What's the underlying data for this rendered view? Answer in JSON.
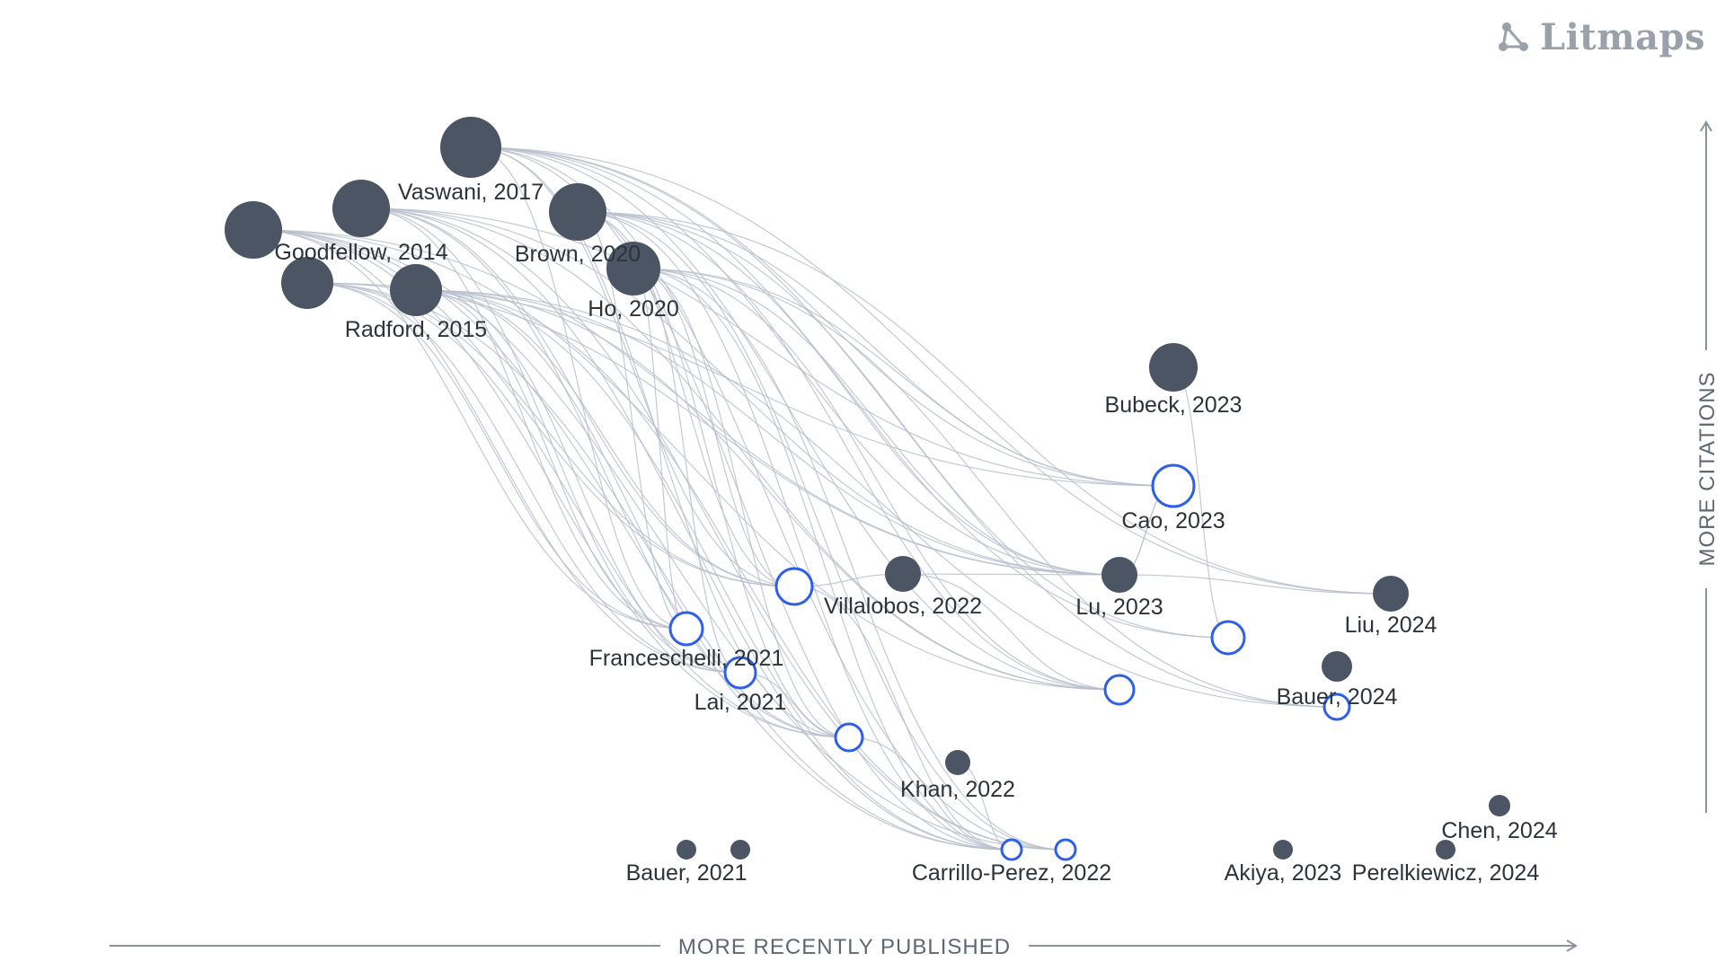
{
  "brand": {
    "name": "Litmaps",
    "icon": "litmaps-logo-icon"
  },
  "axes": {
    "x_label": "MORE RECENTLY PUBLISHED",
    "y_label": "MORE CITATIONS"
  },
  "colors": {
    "node_fill": "#4b5563",
    "seed_stroke": "#2f5fe8",
    "edge": "#b8c0cc",
    "axis": "#8a929e"
  },
  "papers": [
    {
      "id": "vaswani",
      "label": "Vaswani, 2017",
      "kind": "cited"
    },
    {
      "id": "goodfellow",
      "label": "Goodfellow, 2014",
      "kind": "cited"
    },
    {
      "id": "brown",
      "label": "Brown, 2020",
      "kind": "cited"
    },
    {
      "id": "ho",
      "label": "Ho, 2020",
      "kind": "cited"
    },
    {
      "id": "radford",
      "label": "Radford, 2015",
      "kind": "cited"
    },
    {
      "id": "p_a",
      "label": "",
      "kind": "cited"
    },
    {
      "id": "p_b",
      "label": "",
      "kind": "cited"
    },
    {
      "id": "bubeck",
      "label": "Bubeck, 2023",
      "kind": "cited"
    },
    {
      "id": "cao",
      "label": "Cao, 2023",
      "kind": "seed"
    },
    {
      "id": "villalobos",
      "label": "Villalobos, 2022",
      "kind": "cited"
    },
    {
      "id": "villalobos_seed",
      "label": "",
      "kind": "seed"
    },
    {
      "id": "lu",
      "label": "Lu, 2023",
      "kind": "cited"
    },
    {
      "id": "liu",
      "label": "Liu, 2024",
      "kind": "cited"
    },
    {
      "id": "franceschelli",
      "label": "Franceschelli, 2021",
      "kind": "seed"
    },
    {
      "id": "lai",
      "label": "Lai, 2021",
      "kind": "seed"
    },
    {
      "id": "seed_c",
      "label": "",
      "kind": "seed"
    },
    {
      "id": "seed_d",
      "label": "",
      "kind": "seed"
    },
    {
      "id": "seed_e",
      "label": "",
      "kind": "seed"
    },
    {
      "id": "bauer2024",
      "label": "Bauer, 2024",
      "kind": "cited"
    },
    {
      "id": "bauer2024_seed",
      "label": "",
      "kind": "seed"
    },
    {
      "id": "khan",
      "label": "Khan, 2022",
      "kind": "cited"
    },
    {
      "id": "carrillo",
      "label": "Carrillo-Perez, 2022",
      "kind": "seed"
    },
    {
      "id": "carrillo_b",
      "label": "",
      "kind": "seed"
    },
    {
      "id": "bauer2021",
      "label": "Bauer, 2021",
      "kind": "cited"
    },
    {
      "id": "bauer2021_b",
      "label": "",
      "kind": "cited"
    },
    {
      "id": "akiya",
      "label": "Akiya, 2023",
      "kind": "cited"
    },
    {
      "id": "perelkiewicz",
      "label": "Perelkiewicz, 2024",
      "kind": "cited"
    },
    {
      "id": "chen",
      "label": "Chen, 2024",
      "kind": "cited"
    }
  ],
  "links": [
    [
      "vaswani",
      "cao"
    ],
    [
      "vaswani",
      "lu"
    ],
    [
      "vaswani",
      "liu"
    ],
    [
      "vaswani",
      "seed_e"
    ],
    [
      "vaswani",
      "franceschelli"
    ],
    [
      "vaswani",
      "villalobos_seed"
    ],
    [
      "vaswani",
      "seed_c"
    ],
    [
      "vaswani",
      "carrillo"
    ],
    [
      "vaswani",
      "carrillo_b"
    ],
    [
      "vaswani",
      "seed_d"
    ],
    [
      "vaswani",
      "bauer2024_seed"
    ],
    [
      "goodfellow",
      "franceschelli"
    ],
    [
      "goodfellow",
      "lai"
    ],
    [
      "goodfellow",
      "villalobos_seed"
    ],
    [
      "goodfellow",
      "seed_c"
    ],
    [
      "goodfellow",
      "carrillo"
    ],
    [
      "goodfellow",
      "carrillo_b"
    ],
    [
      "goodfellow",
      "lu"
    ],
    [
      "goodfellow",
      "cao"
    ],
    [
      "goodfellow",
      "seed_d"
    ],
    [
      "p_a",
      "franceschelli"
    ],
    [
      "p_a",
      "lai"
    ],
    [
      "p_a",
      "seed_c"
    ],
    [
      "p_a",
      "carrillo"
    ],
    [
      "p_a",
      "carrillo_b"
    ],
    [
      "p_a",
      "villalobos_seed"
    ],
    [
      "p_a",
      "lu"
    ],
    [
      "p_a",
      "seed_d"
    ],
    [
      "p_b",
      "franceschelli"
    ],
    [
      "p_b",
      "lai"
    ],
    [
      "p_b",
      "seed_c"
    ],
    [
      "p_b",
      "carrillo"
    ],
    [
      "p_b",
      "villalobos_seed"
    ],
    [
      "p_b",
      "cao"
    ],
    [
      "p_b",
      "lu"
    ],
    [
      "radford",
      "franceschelli"
    ],
    [
      "radford",
      "lai"
    ],
    [
      "radford",
      "seed_c"
    ],
    [
      "radford",
      "carrillo"
    ],
    [
      "radford",
      "carrillo_b"
    ],
    [
      "radford",
      "villalobos_seed"
    ],
    [
      "radford",
      "lu"
    ],
    [
      "radford",
      "seed_d"
    ],
    [
      "radford",
      "bauer2024_seed"
    ],
    [
      "brown",
      "cao"
    ],
    [
      "brown",
      "lu"
    ],
    [
      "brown",
      "liu"
    ],
    [
      "brown",
      "franceschelli"
    ],
    [
      "brown",
      "villalobos_seed"
    ],
    [
      "brown",
      "seed_c"
    ],
    [
      "brown",
      "carrillo"
    ],
    [
      "brown",
      "carrillo_b"
    ],
    [
      "brown",
      "seed_d"
    ],
    [
      "brown",
      "seed_e"
    ],
    [
      "ho",
      "franceschelli"
    ],
    [
      "ho",
      "lai"
    ],
    [
      "ho",
      "villalobos_seed"
    ],
    [
      "ho",
      "seed_c"
    ],
    [
      "ho",
      "carrillo"
    ],
    [
      "ho",
      "carrillo_b"
    ],
    [
      "ho",
      "lu"
    ],
    [
      "ho",
      "cao"
    ],
    [
      "ho",
      "seed_d"
    ],
    [
      "ho",
      "bauer2024_seed"
    ],
    [
      "villalobos",
      "lu"
    ],
    [
      "villalobos",
      "seed_d"
    ],
    [
      "villalobos_seed",
      "villalobos"
    ],
    [
      "villalobos_seed",
      "carrillo"
    ],
    [
      "lu",
      "cao"
    ],
    [
      "lu",
      "liu"
    ],
    [
      "bubeck",
      "seed_e"
    ],
    [
      "cao",
      "lu"
    ],
    [
      "franceschelli",
      "lai"
    ],
    [
      "lai",
      "seed_c"
    ],
    [
      "seed_c",
      "carrillo"
    ],
    [
      "khan",
      "carrillo"
    ]
  ]
}
